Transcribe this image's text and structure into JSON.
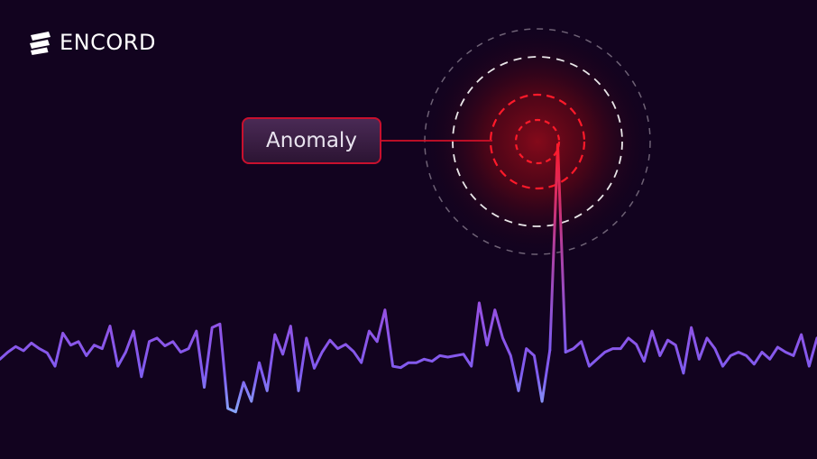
{
  "brand": {
    "name": "ENCORD",
    "icon": "encord-logo-icon"
  },
  "callout": {
    "label": "Anomaly"
  },
  "colors": {
    "background": "#12031f",
    "anomaly_red": "#e3142b",
    "wave_top": "#8a52e8",
    "wave_bottom": "#8fd2ff",
    "ring_white": "#ffffff"
  },
  "signal": {
    "values": [
      0.15,
      0.25,
      0.33,
      0.27,
      0.38,
      0.3,
      0.24,
      0.05,
      0.52,
      0.35,
      0.4,
      0.2,
      0.35,
      0.3,
      0.62,
      0.05,
      0.25,
      0.55,
      -0.1,
      0.4,
      0.45,
      0.34,
      0.4,
      0.25,
      0.3,
      0.55,
      -0.25,
      0.6,
      0.65,
      -0.55,
      -0.6,
      -0.18,
      -0.45,
      0.1,
      -0.3,
      0.5,
      0.22,
      0.62,
      -0.3,
      0.45,
      0.02,
      0.25,
      0.42,
      0.3,
      0.36,
      0.26,
      0.1,
      0.55,
      0.4,
      0.85,
      0.05,
      0.03,
      0.1,
      0.1,
      0.15,
      0.12,
      0.2,
      0.18,
      0.2,
      0.22,
      0.05,
      0.95,
      0.35,
      0.85,
      0.45,
      0.2,
      -0.3,
      0.3,
      0.2,
      -0.45,
      0.28,
      3.2,
      0.25,
      0.3,
      0.4,
      0.05,
      0.15,
      0.25,
      0.3,
      0.3,
      0.45,
      0.36,
      0.12,
      0.55,
      0.2,
      0.42,
      0.35,
      -0.05,
      0.6,
      0.15,
      0.45,
      0.3,
      0.05,
      0.2,
      0.25,
      0.2,
      0.08,
      0.25,
      0.15,
      0.32,
      0.25,
      0.2,
      0.5,
      0.05,
      0.45
    ],
    "anomaly_index": 71
  }
}
